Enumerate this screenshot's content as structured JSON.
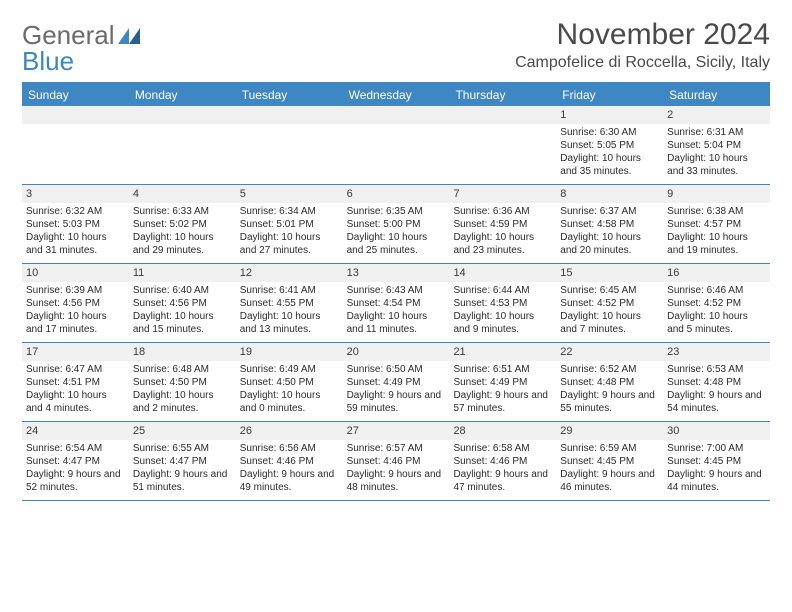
{
  "brand": {
    "general": "General",
    "blue": "Blue"
  },
  "title": "November 2024",
  "location": "Campofelice di Roccella, Sicily, Italy",
  "colors": {
    "accent": "#3e87c3",
    "header_text": "#4a4a4a",
    "day_bg": "#f0f0f0",
    "body_bg": "#ffffff",
    "text": "#2b2b2b"
  },
  "dow": [
    "Sunday",
    "Monday",
    "Tuesday",
    "Wednesday",
    "Thursday",
    "Friday",
    "Saturday"
  ],
  "weeks": [
    [
      null,
      null,
      null,
      null,
      null,
      {
        "n": "1",
        "sunrise": "6:30 AM",
        "sunset": "5:05 PM",
        "daylight": "10 hours and 35 minutes."
      },
      {
        "n": "2",
        "sunrise": "6:31 AM",
        "sunset": "5:04 PM",
        "daylight": "10 hours and 33 minutes."
      }
    ],
    [
      {
        "n": "3",
        "sunrise": "6:32 AM",
        "sunset": "5:03 PM",
        "daylight": "10 hours and 31 minutes."
      },
      {
        "n": "4",
        "sunrise": "6:33 AM",
        "sunset": "5:02 PM",
        "daylight": "10 hours and 29 minutes."
      },
      {
        "n": "5",
        "sunrise": "6:34 AM",
        "sunset": "5:01 PM",
        "daylight": "10 hours and 27 minutes."
      },
      {
        "n": "6",
        "sunrise": "6:35 AM",
        "sunset": "5:00 PM",
        "daylight": "10 hours and 25 minutes."
      },
      {
        "n": "7",
        "sunrise": "6:36 AM",
        "sunset": "4:59 PM",
        "daylight": "10 hours and 23 minutes."
      },
      {
        "n": "8",
        "sunrise": "6:37 AM",
        "sunset": "4:58 PM",
        "daylight": "10 hours and 20 minutes."
      },
      {
        "n": "9",
        "sunrise": "6:38 AM",
        "sunset": "4:57 PM",
        "daylight": "10 hours and 19 minutes."
      }
    ],
    [
      {
        "n": "10",
        "sunrise": "6:39 AM",
        "sunset": "4:56 PM",
        "daylight": "10 hours and 17 minutes."
      },
      {
        "n": "11",
        "sunrise": "6:40 AM",
        "sunset": "4:56 PM",
        "daylight": "10 hours and 15 minutes."
      },
      {
        "n": "12",
        "sunrise": "6:41 AM",
        "sunset": "4:55 PM",
        "daylight": "10 hours and 13 minutes."
      },
      {
        "n": "13",
        "sunrise": "6:43 AM",
        "sunset": "4:54 PM",
        "daylight": "10 hours and 11 minutes."
      },
      {
        "n": "14",
        "sunrise": "6:44 AM",
        "sunset": "4:53 PM",
        "daylight": "10 hours and 9 minutes."
      },
      {
        "n": "15",
        "sunrise": "6:45 AM",
        "sunset": "4:52 PM",
        "daylight": "10 hours and 7 minutes."
      },
      {
        "n": "16",
        "sunrise": "6:46 AM",
        "sunset": "4:52 PM",
        "daylight": "10 hours and 5 minutes."
      }
    ],
    [
      {
        "n": "17",
        "sunrise": "6:47 AM",
        "sunset": "4:51 PM",
        "daylight": "10 hours and 4 minutes."
      },
      {
        "n": "18",
        "sunrise": "6:48 AM",
        "sunset": "4:50 PM",
        "daylight": "10 hours and 2 minutes."
      },
      {
        "n": "19",
        "sunrise": "6:49 AM",
        "sunset": "4:50 PM",
        "daylight": "10 hours and 0 minutes."
      },
      {
        "n": "20",
        "sunrise": "6:50 AM",
        "sunset": "4:49 PM",
        "daylight": "9 hours and 59 minutes."
      },
      {
        "n": "21",
        "sunrise": "6:51 AM",
        "sunset": "4:49 PM",
        "daylight": "9 hours and 57 minutes."
      },
      {
        "n": "22",
        "sunrise": "6:52 AM",
        "sunset": "4:48 PM",
        "daylight": "9 hours and 55 minutes."
      },
      {
        "n": "23",
        "sunrise": "6:53 AM",
        "sunset": "4:48 PM",
        "daylight": "9 hours and 54 minutes."
      }
    ],
    [
      {
        "n": "24",
        "sunrise": "6:54 AM",
        "sunset": "4:47 PM",
        "daylight": "9 hours and 52 minutes."
      },
      {
        "n": "25",
        "sunrise": "6:55 AM",
        "sunset": "4:47 PM",
        "daylight": "9 hours and 51 minutes."
      },
      {
        "n": "26",
        "sunrise": "6:56 AM",
        "sunset": "4:46 PM",
        "daylight": "9 hours and 49 minutes."
      },
      {
        "n": "27",
        "sunrise": "6:57 AM",
        "sunset": "4:46 PM",
        "daylight": "9 hours and 48 minutes."
      },
      {
        "n": "28",
        "sunrise": "6:58 AM",
        "sunset": "4:46 PM",
        "daylight": "9 hours and 47 minutes."
      },
      {
        "n": "29",
        "sunrise": "6:59 AM",
        "sunset": "4:45 PM",
        "daylight": "9 hours and 46 minutes."
      },
      {
        "n": "30",
        "sunrise": "7:00 AM",
        "sunset": "4:45 PM",
        "daylight": "9 hours and 44 minutes."
      }
    ]
  ],
  "labels": {
    "sunrise": "Sunrise:",
    "sunset": "Sunset:",
    "daylight": "Daylight:"
  }
}
